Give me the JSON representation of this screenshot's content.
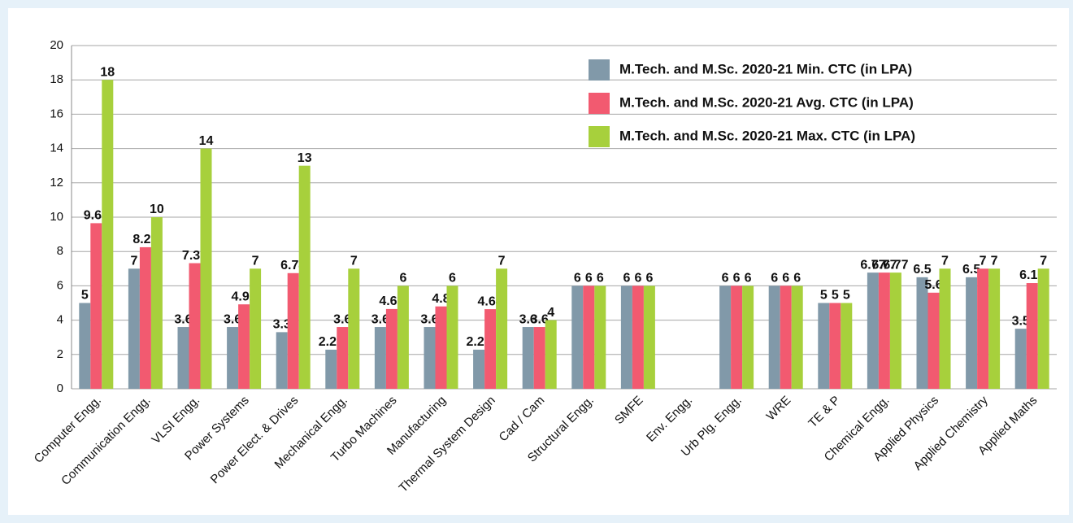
{
  "chart_data": {
    "type": "bar",
    "categories": [
      "Computer Engg.",
      "Communication Engg.",
      "VLSI Engg.",
      "Power Systems",
      "Power Elect. & Drives",
      "Mechanical Engg.",
      "Turbo Machines",
      "Manufacturing",
      "Thermal System Design",
      "Cad / Cam",
      "Structural Engg.",
      "SMFE",
      "Env. Engg.",
      "Urb Plg. Engg.",
      "WRE",
      "TE & P",
      "Chemical Engg.",
      "Applied Physics",
      "Applied Chemistry",
      "Applied Maths"
    ],
    "series": [
      {
        "name": "M.Tech. and M.Sc. 2020-21 Min. CTC (in LPA)",
        "color": "#8199a9",
        "values": [
          5,
          7,
          3.6,
          3.6,
          3.3,
          2.28,
          3.6,
          3.6,
          2.28,
          3.6,
          6,
          6,
          null,
          6,
          6,
          5,
          6.77,
          6.5,
          6.5,
          3.5
        ]
      },
      {
        "name": "M.Tech. and M.Sc. 2020-21 Avg. CTC (in LPA)",
        "color": "#f25a70",
        "values": [
          9.65,
          8.25,
          7.32,
          4.92,
          6.74,
          3.6,
          4.65,
          4.8,
          4.64,
          3.6,
          6,
          6,
          null,
          6,
          6,
          5,
          6.77,
          5.6,
          7,
          6.16
        ]
      },
      {
        "name": "M.Tech. and M.Sc. 2020-21 Max. CTC (in LPA)",
        "color": "#a7d03c",
        "values": [
          18,
          10,
          14,
          7,
          13,
          7,
          6,
          6,
          7,
          4,
          6,
          6,
          null,
          6,
          6,
          5,
          6.77,
          7,
          7,
          7
        ]
      }
    ],
    "ylim": [
      0,
      20
    ],
    "yticks": [
      0,
      2,
      4,
      6,
      8,
      10,
      12,
      14,
      16,
      18,
      20
    ],
    "grid": true,
    "legend": "top-right"
  }
}
